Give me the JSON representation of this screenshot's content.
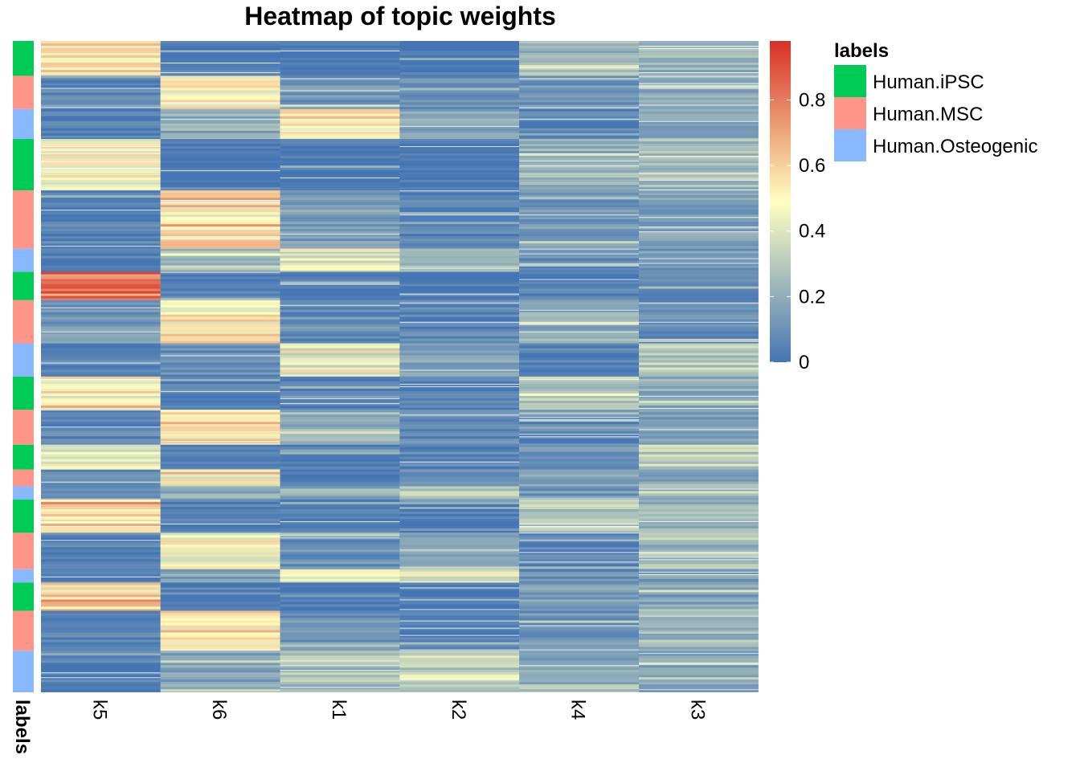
{
  "chart_data": {
    "type": "heatmap",
    "title": "Heatmap of topic weights",
    "columns": [
      "k5",
      "k6",
      "k1",
      "k2",
      "k4",
      "k3"
    ],
    "annotation": {
      "name": "labels",
      "categories": [
        "Human.iPSC",
        "Human.MSC",
        "Human.Osteogenic"
      ],
      "colors": {
        "Human.iPSC": "#00cc55",
        "Human.MSC": "#ff9488",
        "Human.Osteogenic": "#88b8ff"
      }
    },
    "legend": {
      "title": "labels",
      "entries": [
        "Human.iPSC",
        "Human.MSC",
        "Human.Osteogenic"
      ],
      "placement": "right"
    },
    "colorbar": {
      "min": 0,
      "max": 0.98,
      "ticks": [
        0,
        0.2,
        0.4,
        0.6,
        0.8
      ],
      "tick_labels": [
        "0",
        "0.2",
        "0.4",
        "0.6",
        "0.8"
      ],
      "colors": [
        "#4575b4",
        "#ffffbf",
        "#d73027"
      ]
    },
    "row_groups": [
      {
        "label": "Human.iPSC",
        "weight": 1.05,
        "values": [
          0.52,
          0.02,
          0.01,
          0.01,
          0.25,
          0.22
        ]
      },
      {
        "label": "Human.MSC",
        "weight": 1.0,
        "values": [
          0.05,
          0.52,
          0.12,
          0.08,
          0.12,
          0.18
        ]
      },
      {
        "label": "Human.Osteogenic",
        "weight": 0.9,
        "values": [
          0.04,
          0.2,
          0.55,
          0.18,
          0.06,
          0.2
        ]
      },
      {
        "label": "Human.iPSC",
        "weight": 1.55,
        "values": [
          0.5,
          0.01,
          0.01,
          0.01,
          0.22,
          0.26
        ]
      },
      {
        "label": "Human.MSC",
        "weight": 1.75,
        "values": [
          0.05,
          0.53,
          0.15,
          0.05,
          0.12,
          0.16
        ]
      },
      {
        "label": "Human.Osteogenic",
        "weight": 0.7,
        "values": [
          0.03,
          0.25,
          0.4,
          0.28,
          0.08,
          0.14
        ]
      },
      {
        "label": "Human.iPSC",
        "weight": 0.85,
        "values": [
          0.78,
          0.05,
          0.03,
          0.01,
          0.05,
          0.07
        ]
      },
      {
        "label": "Human.MSC",
        "weight": 1.3,
        "values": [
          0.12,
          0.52,
          0.06,
          0.06,
          0.2,
          0.08
        ]
      },
      {
        "label": "Human.Osteogenic",
        "weight": 1.0,
        "values": [
          0.06,
          0.08,
          0.36,
          0.18,
          0.05,
          0.3
        ]
      },
      {
        "label": "Human.iPSC",
        "weight": 1.0,
        "values": [
          0.5,
          0.04,
          0.03,
          0.03,
          0.28,
          0.2
        ]
      },
      {
        "label": "Human.MSC",
        "weight": 1.05,
        "values": [
          0.06,
          0.55,
          0.22,
          0.08,
          0.06,
          0.14
        ]
      },
      {
        "label": "Human.iPSC",
        "weight": 0.75,
        "values": [
          0.45,
          0.06,
          0.03,
          0.06,
          0.12,
          0.32
        ]
      },
      {
        "label": "Human.MSC",
        "weight": 0.5,
        "values": [
          0.06,
          0.48,
          0.05,
          0.1,
          0.14,
          0.2
        ]
      },
      {
        "label": "Human.Osteogenic",
        "weight": 0.4,
        "values": [
          0.06,
          0.2,
          0.2,
          0.28,
          0.12,
          0.22
        ]
      },
      {
        "label": "Human.iPSC",
        "weight": 1.0,
        "values": [
          0.55,
          0.03,
          0.02,
          0.02,
          0.3,
          0.24
        ]
      },
      {
        "label": "Human.MSC",
        "weight": 1.1,
        "values": [
          0.05,
          0.45,
          0.1,
          0.16,
          0.05,
          0.24
        ]
      },
      {
        "label": "Human.Osteogenic",
        "weight": 0.4,
        "values": [
          0.04,
          0.16,
          0.4,
          0.42,
          0.1,
          0.16
        ]
      },
      {
        "label": "Human.iPSC",
        "weight": 0.85,
        "values": [
          0.55,
          0.03,
          0.02,
          0.02,
          0.16,
          0.16
        ]
      },
      {
        "label": "Human.MSC",
        "weight": 1.2,
        "values": [
          0.05,
          0.52,
          0.12,
          0.04,
          0.12,
          0.2
        ]
      },
      {
        "label": "Human.Osteogenic",
        "weight": 1.25,
        "values": [
          0.04,
          0.16,
          0.26,
          0.32,
          0.16,
          0.16
        ]
      }
    ]
  }
}
